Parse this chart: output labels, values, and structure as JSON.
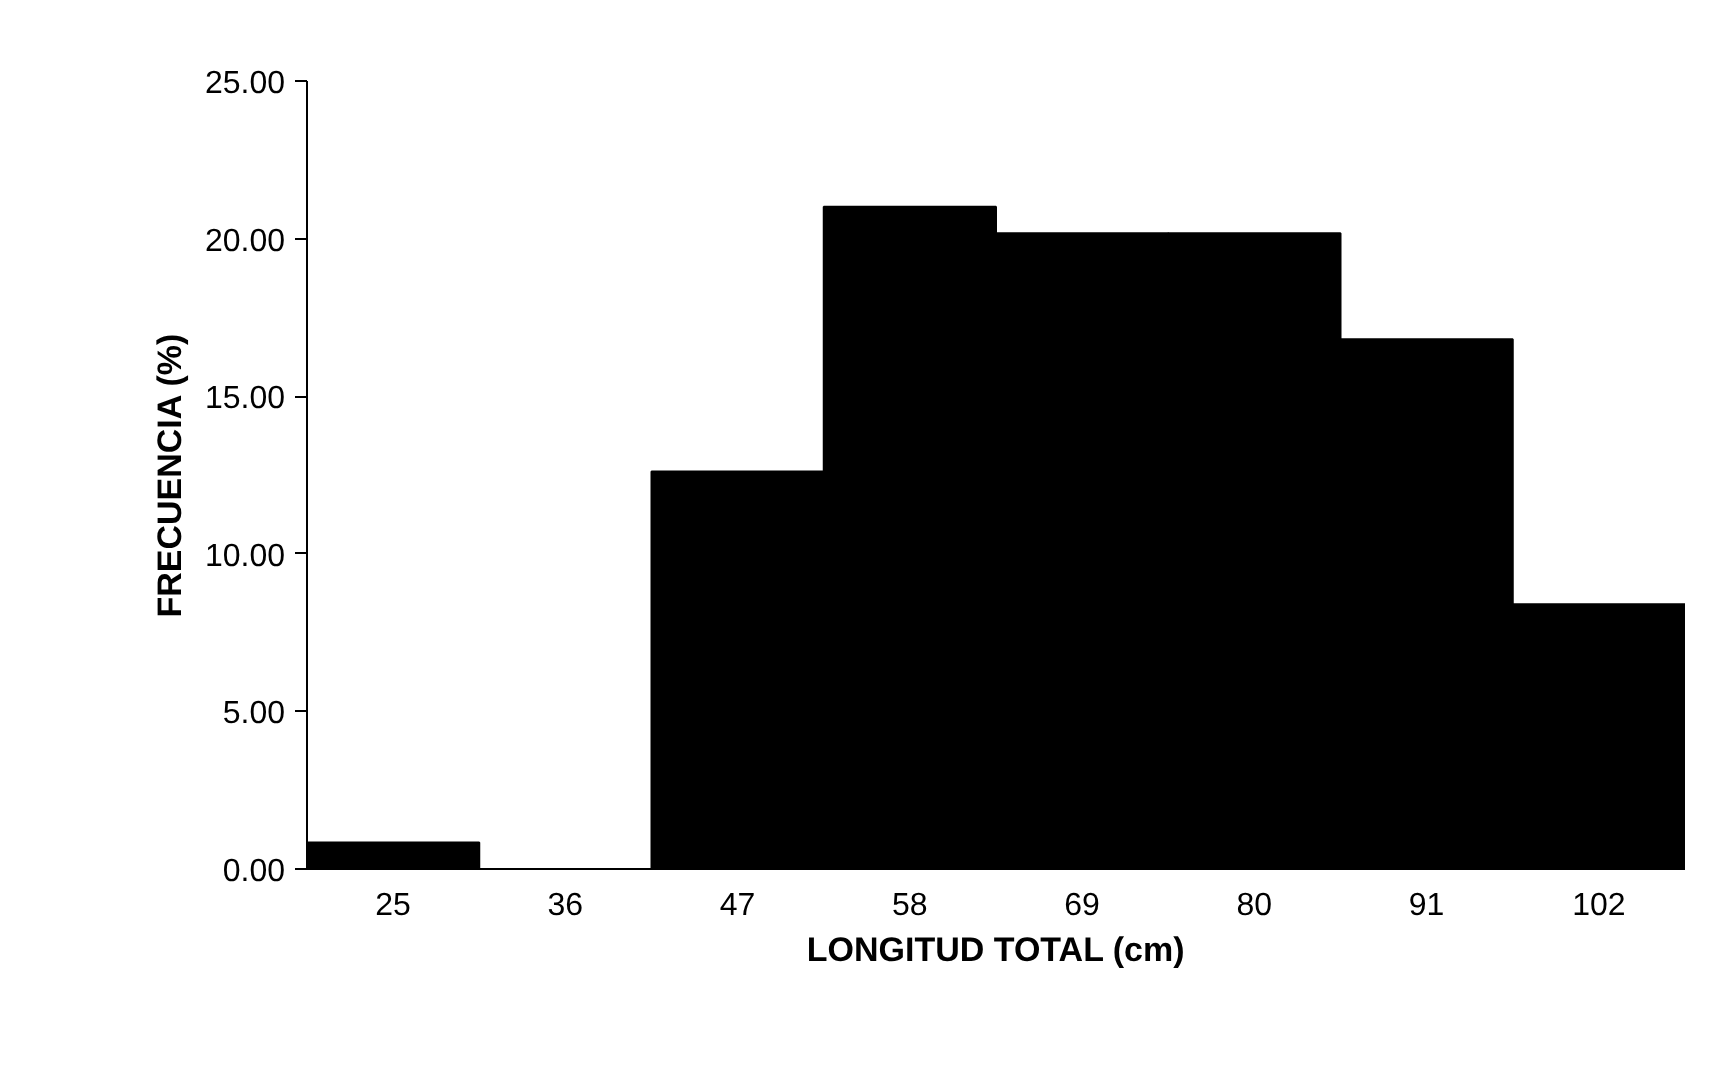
{
  "chart_data": {
    "type": "bar",
    "xlabel": "LONGITUD TOTAL (cm)",
    "ylabel": "FRECUENCIA (%)",
    "categories": [
      "25",
      "36",
      "47",
      "58",
      "69",
      "80",
      "91",
      "102"
    ],
    "values": [
      0.84,
      0,
      12.61,
      21.01,
      20.17,
      20.17,
      16.81,
      8.4
    ],
    "color": "#000000",
    "ylim": [
      0,
      25
    ],
    "yticks": [
      {
        "value": 0,
        "label": "0.00"
      },
      {
        "value": 5,
        "label": "5.00"
      },
      {
        "value": 10,
        "label": "10.00"
      },
      {
        "value": 15,
        "label": "15.00"
      },
      {
        "value": 20,
        "label": "20.00"
      },
      {
        "value": 25,
        "label": "25.00"
      }
    ],
    "grid": false
  }
}
